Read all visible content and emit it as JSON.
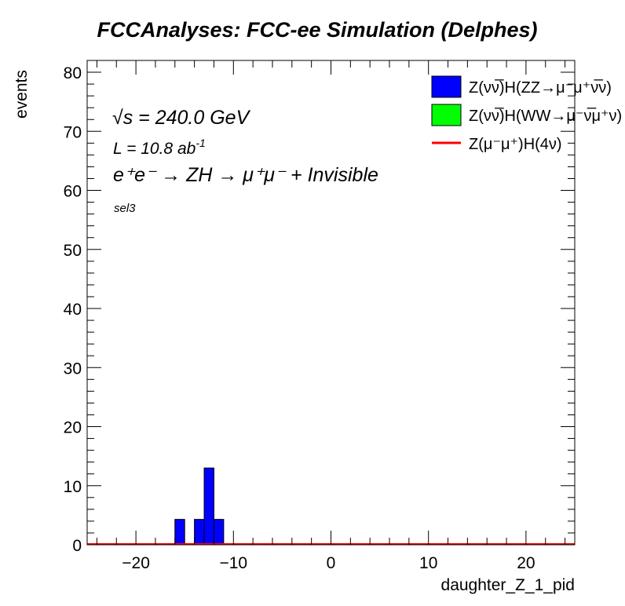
{
  "chart_data": {
    "type": "bar",
    "title": "FCCAnalyses: FCC-ee Simulation (Delphes)",
    "xlabel": "daughter_Z_1_pid",
    "ylabel": "events",
    "xlim": [
      -25,
      25
    ],
    "ylim": [
      0,
      82
    ],
    "xticks": [
      -20,
      -10,
      0,
      10,
      20
    ],
    "xtick_labels": [
      "−20",
      "−10",
      "0",
      "10",
      "20"
    ],
    "yticks": [
      0,
      10,
      20,
      30,
      40,
      50,
      60,
      70,
      80
    ],
    "yticks_labels": [
      "0",
      "10",
      "20",
      "30",
      "40",
      "50",
      "60",
      "70",
      "80"
    ],
    "annotations": {
      "energy": "√s = 240.0 GeV",
      "lumi": "L = 10.8 ab",
      "lumi_exp": "-1",
      "process": "e⁺e⁻ → ZH → μ⁺μ⁻ + Invisible",
      "selection": "sel3"
    },
    "series": [
      {
        "name": "Z(νν̅)H(ZZ→μ⁻μ⁺ν̅ν)",
        "style": "stacked-bar",
        "color": "#0000ff",
        "bins": [
          {
            "x0": -16,
            "x1": -15,
            "value": 4.3
          },
          {
            "x0": -14,
            "x1": -13,
            "value": 4.3
          },
          {
            "x0": -13,
            "x1": -12,
            "value": 13.0
          },
          {
            "x0": -12,
            "x1": -11,
            "value": 4.3
          }
        ]
      },
      {
        "name": "Z(νν̅)H(WW→μ⁻ν̅μ⁺ν)",
        "style": "stacked-bar",
        "color": "#00ff00",
        "bins": []
      },
      {
        "name": "Z(μ⁻μ⁺)H(4ν)",
        "style": "line",
        "color": "#ff0000",
        "value": 0
      }
    ],
    "legend_position": "top-right",
    "grid": false
  }
}
